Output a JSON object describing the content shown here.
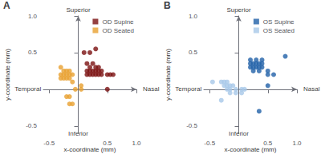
{
  "chart_data": [
    {
      "type": "scatter",
      "title": "A",
      "xlabel": "x-coordinate (mm)",
      "ylabel": "y-coordinate (mm)",
      "series": [
        {
          "name": "OD Supine",
          "color": "#7B1010",
          "values": [
            [
              0.1,
              0.5
            ],
            [
              0.2,
              0.5
            ],
            [
              0.3,
              0.55
            ],
            [
              0.15,
              0.35
            ],
            [
              0.25,
              0.35
            ],
            [
              0.2,
              0.3
            ],
            [
              0.3,
              0.3
            ],
            [
              0.35,
              0.3
            ],
            [
              0.15,
              0.25
            ],
            [
              0.2,
              0.25
            ],
            [
              0.25,
              0.25
            ],
            [
              0.3,
              0.25
            ],
            [
              0.35,
              0.25
            ],
            [
              0.4,
              0.25
            ],
            [
              0.15,
              0.2
            ],
            [
              0.2,
              0.2
            ],
            [
              0.25,
              0.2
            ],
            [
              0.3,
              0.2
            ],
            [
              0.35,
              0.2
            ],
            [
              0.4,
              0.2
            ],
            [
              0.5,
              0.2
            ],
            [
              0.55,
              0.2
            ],
            [
              0.6,
              0.2
            ],
            [
              0.5,
              0.0
            ]
          ]
        },
        {
          "name": "OD Seated",
          "color": "#E8A030",
          "values": [
            [
              -0.3,
              0.3
            ],
            [
              -0.25,
              0.25
            ],
            [
              -0.2,
              0.25
            ],
            [
              -0.15,
              0.25
            ],
            [
              -0.3,
              0.2
            ],
            [
              -0.25,
              0.2
            ],
            [
              -0.2,
              0.2
            ],
            [
              -0.15,
              0.2
            ],
            [
              -0.1,
              0.2
            ],
            [
              -0.3,
              0.15
            ],
            [
              -0.25,
              0.15
            ],
            [
              -0.2,
              0.15
            ],
            [
              -0.15,
              0.15
            ],
            [
              -0.1,
              0.1
            ],
            [
              0.05,
              0.05
            ],
            [
              0.05,
              0.0
            ],
            [
              -0.05,
              0.0
            ],
            [
              -0.2,
              -0.1
            ],
            [
              -0.15,
              -0.1
            ],
            [
              -0.15,
              -0.2
            ],
            [
              -0.1,
              -0.2
            ]
          ]
        }
      ],
      "xlim": [
        -0.6,
        1.0
      ],
      "ylim": [
        -0.6,
        1.0
      ],
      "xticks": [
        -0.5,
        0.5,
        {
          "value": 1.0,
          "label": "1.0"
        }
      ],
      "yticks": [
        -0.5,
        0.5,
        {
          "value": 1.0,
          "label": "1.0"
        }
      ],
      "annotations": [
        {
          "text": "Superior",
          "x": 0,
          "y": 1.0
        },
        {
          "text": "Inferior",
          "x": 0,
          "y": -0.5
        },
        {
          "text": "Temporal",
          "x": -0.5,
          "y": 0
        },
        {
          "text": "Nasal",
          "x": 1.0,
          "y": 0
        }
      ],
      "legend": "upper right",
      "grid": false
    },
    {
      "type": "scatter",
      "title": "B",
      "xlabel": "x-coordinate (mm)",
      "ylabel": "y-coordinate (mm)",
      "series": [
        {
          "name": "OS Supine",
          "color": "#2060A8",
          "values": [
            [
              0.2,
              0.4
            ],
            [
              0.3,
              0.4
            ],
            [
              0.4,
              0.4
            ],
            [
              0.2,
              0.35
            ],
            [
              0.25,
              0.35
            ],
            [
              0.3,
              0.35
            ],
            [
              0.35,
              0.35
            ],
            [
              0.4,
              0.35
            ],
            [
              0.2,
              0.3
            ],
            [
              0.25,
              0.3
            ],
            [
              0.3,
              0.3
            ],
            [
              0.35,
              0.3
            ],
            [
              0.4,
              0.3
            ],
            [
              0.25,
              0.25
            ],
            [
              0.35,
              0.25
            ],
            [
              0.5,
              0.25
            ],
            [
              0.5,
              0.2
            ],
            [
              0.6,
              0.2
            ],
            [
              0.5,
              0.05
            ],
            [
              0.8,
              0.45
            ],
            [
              0.35,
              -0.3
            ]
          ]
        },
        {
          "name": "OS Seated",
          "color": "#A8C8E8",
          "values": [
            [
              -0.45,
              0.1
            ],
            [
              -0.3,
              0.1
            ],
            [
              -0.25,
              0.1
            ],
            [
              -0.2,
              0.1
            ],
            [
              -0.25,
              0.05
            ],
            [
              -0.2,
              0.05
            ],
            [
              -0.15,
              0.05
            ],
            [
              -0.1,
              0.05
            ],
            [
              -0.2,
              0.0
            ],
            [
              -0.15,
              0.0
            ],
            [
              -0.05,
              0.0
            ],
            [
              0.05,
              0.0
            ],
            [
              0.1,
              0.0
            ],
            [
              -0.15,
              -0.05
            ],
            [
              -0.05,
              -0.05
            ],
            [
              -0.3,
              -0.15
            ],
            [
              0.05,
              -0.05
            ]
          ]
        }
      ],
      "xlim": [
        -0.6,
        1.0
      ],
      "ylim": [
        -0.6,
        1.0
      ],
      "xticks": [
        -0.5,
        0.5,
        {
          "value": 1.0,
          "label": "1.0"
        }
      ],
      "yticks": [
        -0.5,
        0.5,
        {
          "value": 1.0,
          "label": "1.0"
        }
      ],
      "annotations": [
        {
          "text": "Superior",
          "x": 0,
          "y": 1.0
        },
        {
          "text": "Inferior",
          "x": 0,
          "y": -0.5
        },
        {
          "text": "Temporal",
          "x": -0.5,
          "y": 0
        },
        {
          "text": "Nasal",
          "x": 1.0,
          "y": 0
        }
      ],
      "legend": "upper right",
      "grid": false
    }
  ]
}
